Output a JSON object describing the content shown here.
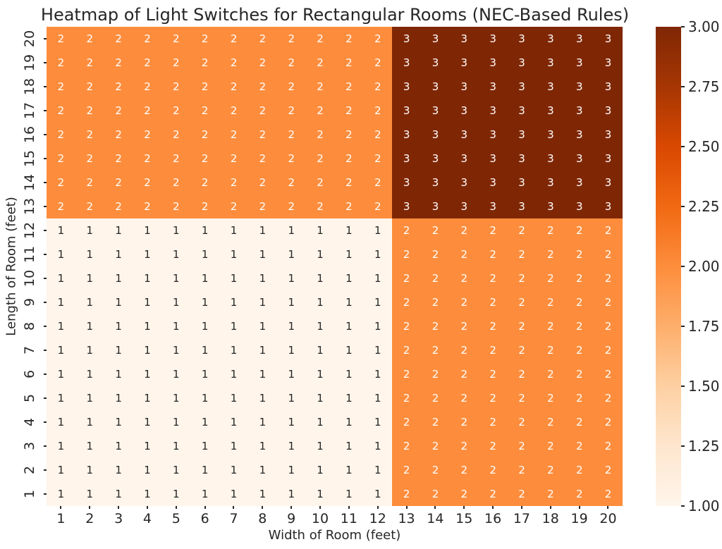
{
  "chart_data": {
    "type": "heatmap",
    "title": "Heatmap of Light Switches for Rectangular Rooms (NEC-Based Rules)",
    "xlabel": "Width of Room (feet)",
    "ylabel": "Length of Room (feet)",
    "x_ticklabels": [
      "1",
      "2",
      "3",
      "4",
      "5",
      "6",
      "7",
      "8",
      "9",
      "10",
      "11",
      "12",
      "13",
      "14",
      "15",
      "16",
      "17",
      "18",
      "19",
      "20"
    ],
    "y_ticklabels_top_to_bottom": [
      "20",
      "19",
      "18",
      "17",
      "16",
      "15",
      "14",
      "13",
      "12",
      "11",
      "10",
      "9",
      "8",
      "7",
      "6",
      "5",
      "4",
      "3",
      "2",
      "1"
    ],
    "rows_top_to_bottom": [
      [
        2,
        2,
        2,
        2,
        2,
        2,
        2,
        2,
        2,
        2,
        2,
        2,
        3,
        3,
        3,
        3,
        3,
        3,
        3,
        3
      ],
      [
        2,
        2,
        2,
        2,
        2,
        2,
        2,
        2,
        2,
        2,
        2,
        2,
        3,
        3,
        3,
        3,
        3,
        3,
        3,
        3
      ],
      [
        2,
        2,
        2,
        2,
        2,
        2,
        2,
        2,
        2,
        2,
        2,
        2,
        3,
        3,
        3,
        3,
        3,
        3,
        3,
        3
      ],
      [
        2,
        2,
        2,
        2,
        2,
        2,
        2,
        2,
        2,
        2,
        2,
        2,
        3,
        3,
        3,
        3,
        3,
        3,
        3,
        3
      ],
      [
        2,
        2,
        2,
        2,
        2,
        2,
        2,
        2,
        2,
        2,
        2,
        2,
        3,
        3,
        3,
        3,
        3,
        3,
        3,
        3
      ],
      [
        2,
        2,
        2,
        2,
        2,
        2,
        2,
        2,
        2,
        2,
        2,
        2,
        3,
        3,
        3,
        3,
        3,
        3,
        3,
        3
      ],
      [
        2,
        2,
        2,
        2,
        2,
        2,
        2,
        2,
        2,
        2,
        2,
        2,
        3,
        3,
        3,
        3,
        3,
        3,
        3,
        3
      ],
      [
        2,
        2,
        2,
        2,
        2,
        2,
        2,
        2,
        2,
        2,
        2,
        2,
        3,
        3,
        3,
        3,
        3,
        3,
        3,
        3
      ],
      [
        1,
        1,
        1,
        1,
        1,
        1,
        1,
        1,
        1,
        1,
        1,
        1,
        2,
        2,
        2,
        2,
        2,
        2,
        2,
        2
      ],
      [
        1,
        1,
        1,
        1,
        1,
        1,
        1,
        1,
        1,
        1,
        1,
        1,
        2,
        2,
        2,
        2,
        2,
        2,
        2,
        2
      ],
      [
        1,
        1,
        1,
        1,
        1,
        1,
        1,
        1,
        1,
        1,
        1,
        1,
        2,
        2,
        2,
        2,
        2,
        2,
        2,
        2
      ],
      [
        1,
        1,
        1,
        1,
        1,
        1,
        1,
        1,
        1,
        1,
        1,
        1,
        2,
        2,
        2,
        2,
        2,
        2,
        2,
        2
      ],
      [
        1,
        1,
        1,
        1,
        1,
        1,
        1,
        1,
        1,
        1,
        1,
        1,
        2,
        2,
        2,
        2,
        2,
        2,
        2,
        2
      ],
      [
        1,
        1,
        1,
        1,
        1,
        1,
        1,
        1,
        1,
        1,
        1,
        1,
        2,
        2,
        2,
        2,
        2,
        2,
        2,
        2
      ],
      [
        1,
        1,
        1,
        1,
        1,
        1,
        1,
        1,
        1,
        1,
        1,
        1,
        2,
        2,
        2,
        2,
        2,
        2,
        2,
        2
      ],
      [
        1,
        1,
        1,
        1,
        1,
        1,
        1,
        1,
        1,
        1,
        1,
        1,
        2,
        2,
        2,
        2,
        2,
        2,
        2,
        2
      ],
      [
        1,
        1,
        1,
        1,
        1,
        1,
        1,
        1,
        1,
        1,
        1,
        1,
        2,
        2,
        2,
        2,
        2,
        2,
        2,
        2
      ],
      [
        1,
        1,
        1,
        1,
        1,
        1,
        1,
        1,
        1,
        1,
        1,
        1,
        2,
        2,
        2,
        2,
        2,
        2,
        2,
        2
      ],
      [
        1,
        1,
        1,
        1,
        1,
        1,
        1,
        1,
        1,
        1,
        1,
        1,
        2,
        2,
        2,
        2,
        2,
        2,
        2,
        2
      ],
      [
        1,
        1,
        1,
        1,
        1,
        1,
        1,
        1,
        1,
        1,
        1,
        1,
        2,
        2,
        2,
        2,
        2,
        2,
        2,
        2
      ]
    ],
    "value_range": [
      1,
      3
    ],
    "cell_colors": {
      "1": "#fff5eb",
      "2": "#fd8d3c",
      "3": "#7f2704"
    },
    "annot_text_colors": {
      "1": "#262626",
      "2": "#ffffff",
      "3": "#ffffff"
    },
    "colorbar": {
      "position": "right",
      "tick_labels_top_to_bottom": [
        "3.00",
        "2.75",
        "2.50",
        "2.25",
        "2.00",
        "1.75",
        "1.50",
        "1.25",
        "1.00"
      ],
      "gradient_bottom_to_top": [
        "#fff5eb",
        "#fee6ce",
        "#fdd0a2",
        "#fdae6b",
        "#fd8d3c",
        "#f16913",
        "#d94801",
        "#a63603",
        "#7f2704"
      ]
    },
    "grid": false,
    "text_color": "#262626"
  }
}
